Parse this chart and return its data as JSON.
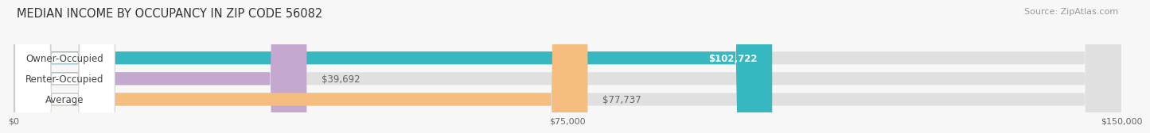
{
  "title": "MEDIAN INCOME BY OCCUPANCY IN ZIP CODE 56082",
  "source": "Source: ZipAtlas.com",
  "categories": [
    "Owner-Occupied",
    "Renter-Occupied",
    "Average"
  ],
  "values": [
    102722,
    39692,
    77737
  ],
  "labels": [
    "$102,722",
    "$39,692",
    "$77,737"
  ],
  "bar_colors": [
    "#35b8c0",
    "#c4a8d0",
    "#f5be7e"
  ],
  "track_color": "#e0e0e0",
  "white_pill_color": "#ffffff",
  "label_color_inside": "#ffffff",
  "label_color_outside": "#666666",
  "xlim": [
    0,
    150000
  ],
  "xticks": [
    0,
    75000,
    150000
  ],
  "xtick_labels": [
    "$0",
    "$75,000",
    "$150,000"
  ],
  "title_fontsize": 10.5,
  "source_fontsize": 8,
  "value_fontsize": 8.5,
  "category_fontsize": 8.5,
  "bar_height": 0.62,
  "background_color": "#f7f7f7",
  "track_rounding": 5000,
  "bar_rounding": 5000
}
